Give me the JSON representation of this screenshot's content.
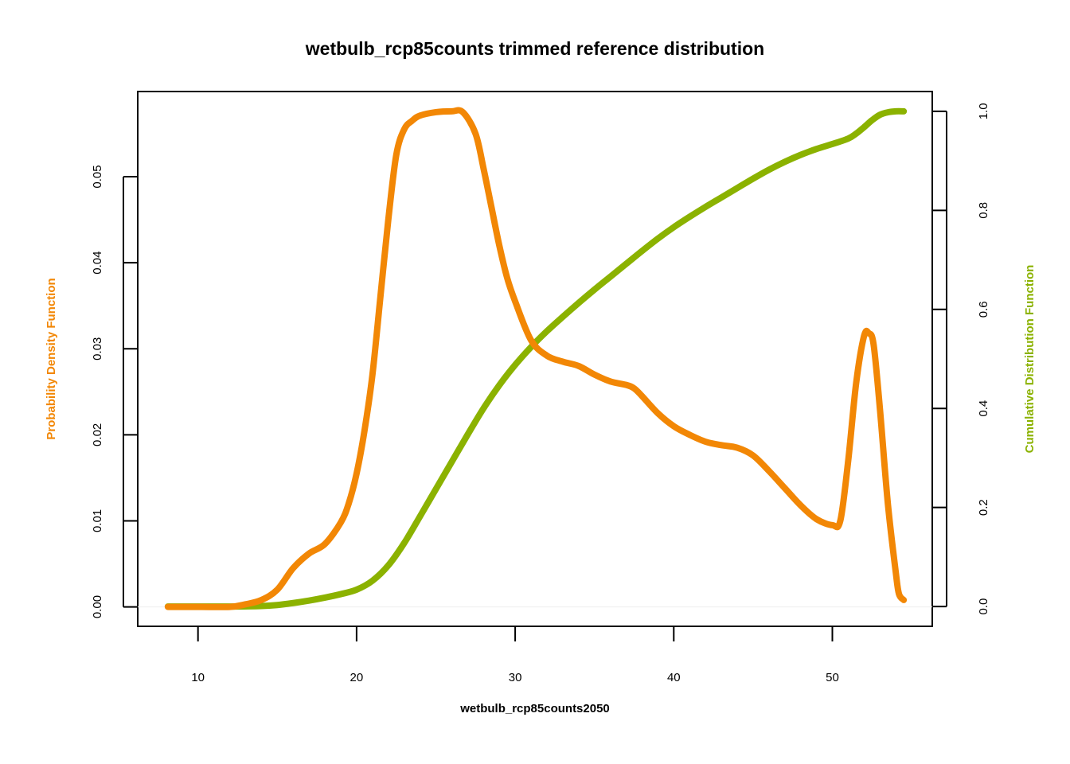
{
  "chart_data": {
    "type": "line",
    "title": "wetbulb_rcp85counts trimmed reference distribution",
    "xlabel": "wetbulb_rcp85counts2050",
    "ylabel_left": "Probability Density Function",
    "ylabel_right": "Cumulative Distribution Function",
    "xlim": [
      6.2,
      56.3
    ],
    "ylim_left": [
      -0.00226,
      0.0599
    ],
    "ylim_right": [
      -0.04,
      1.04
    ],
    "x_ticks": [
      10,
      20,
      30,
      40,
      50
    ],
    "y_left_ticks": [
      "0.00",
      "0.01",
      "0.02",
      "0.03",
      "0.04",
      "0.05"
    ],
    "y_right_ticks": [
      "0.0",
      "0.2",
      "0.4",
      "0.6",
      "0.8",
      "1.0"
    ],
    "grid": false,
    "series": [
      {
        "name": "Probability Density Function",
        "axis": "left",
        "color": "#F28705",
        "x": [
          8.1,
          10,
          12,
          13,
          14,
          15,
          16,
          17,
          18,
          19,
          19.5,
          20,
          20.5,
          21,
          21.5,
          22,
          22.5,
          23,
          23.5,
          24,
          25,
          26,
          26.7,
          27.5,
          28,
          28.5,
          29,
          29.5,
          30,
          31,
          32,
          33,
          34,
          35,
          36,
          37,
          37.5,
          38,
          39,
          40,
          41,
          42,
          43,
          44,
          45,
          46,
          47,
          48,
          49,
          50,
          50.5,
          51,
          51.5,
          52,
          52.3,
          52.6,
          53,
          53.5,
          54,
          54.2,
          54.5
        ],
        "y": [
          0.0,
          0.0,
          0.0,
          0.0003,
          0.0008,
          0.002,
          0.0045,
          0.0062,
          0.0073,
          0.0098,
          0.012,
          0.0155,
          0.0205,
          0.027,
          0.036,
          0.045,
          0.0525,
          0.0555,
          0.0565,
          0.0571,
          0.0575,
          0.0576,
          0.0575,
          0.055,
          0.051,
          0.0465,
          0.042,
          0.0382,
          0.0355,
          0.031,
          0.0292,
          0.0285,
          0.028,
          0.027,
          0.0262,
          0.0258,
          0.0254,
          0.0245,
          0.0225,
          0.021,
          0.02,
          0.0192,
          0.0188,
          0.0185,
          0.0176,
          0.0158,
          0.0138,
          0.0118,
          0.0102,
          0.0095,
          0.01,
          0.017,
          0.026,
          0.0315,
          0.0318,
          0.0305,
          0.023,
          0.012,
          0.004,
          0.0015,
          0.0008
        ]
      },
      {
        "name": "Cumulative Distribution Function",
        "axis": "right",
        "color": "#8BB200",
        "x": [
          8.1,
          10,
          12,
          14,
          15,
          16,
          17,
          18,
          19,
          20,
          21,
          22,
          23,
          24,
          25,
          26,
          27,
          28,
          29,
          30,
          31,
          32,
          33,
          34,
          35,
          36,
          37,
          38,
          39,
          40,
          41,
          42,
          43,
          44,
          45,
          46,
          47,
          48,
          49,
          50,
          51,
          51.5,
          52,
          52.5,
          53,
          53.5,
          54,
          54.5
        ],
        "y": [
          0.0,
          0.0,
          0.0,
          0.001,
          0.003,
          0.007,
          0.012,
          0.018,
          0.025,
          0.034,
          0.052,
          0.083,
          0.128,
          0.182,
          0.237,
          0.292,
          0.347,
          0.4,
          0.447,
          0.488,
          0.524,
          0.556,
          0.585,
          0.613,
          0.64,
          0.666,
          0.692,
          0.718,
          0.743,
          0.766,
          0.787,
          0.807,
          0.826,
          0.845,
          0.864,
          0.882,
          0.898,
          0.912,
          0.924,
          0.934,
          0.945,
          0.955,
          0.968,
          0.982,
          0.993,
          0.998,
          1.0,
          1.0
        ]
      }
    ]
  }
}
